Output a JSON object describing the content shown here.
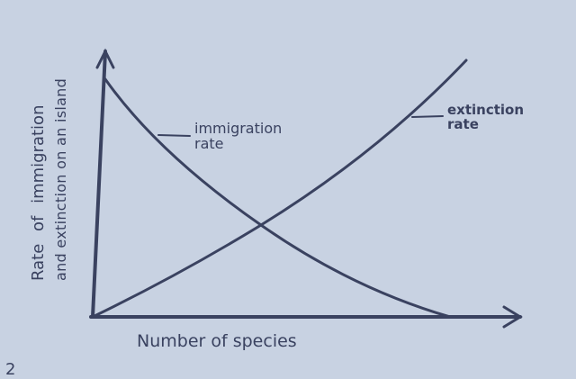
{
  "diagram": {
    "x_axis_label": "Number of species",
    "y_axis_label_line1": "Rate of immigration",
    "y_axis_label_line2": "and extinction on an island",
    "curves": [
      {
        "label_line1": "immigration",
        "label_line2": "rate",
        "trend": "decreasing"
      },
      {
        "label_line1": "extinction",
        "label_line2": "rate",
        "trend": "increasing"
      }
    ],
    "page_number_fragment": "2"
  },
  "colors": {
    "background": "#c8d2e2",
    "ink": "#3a4260"
  }
}
